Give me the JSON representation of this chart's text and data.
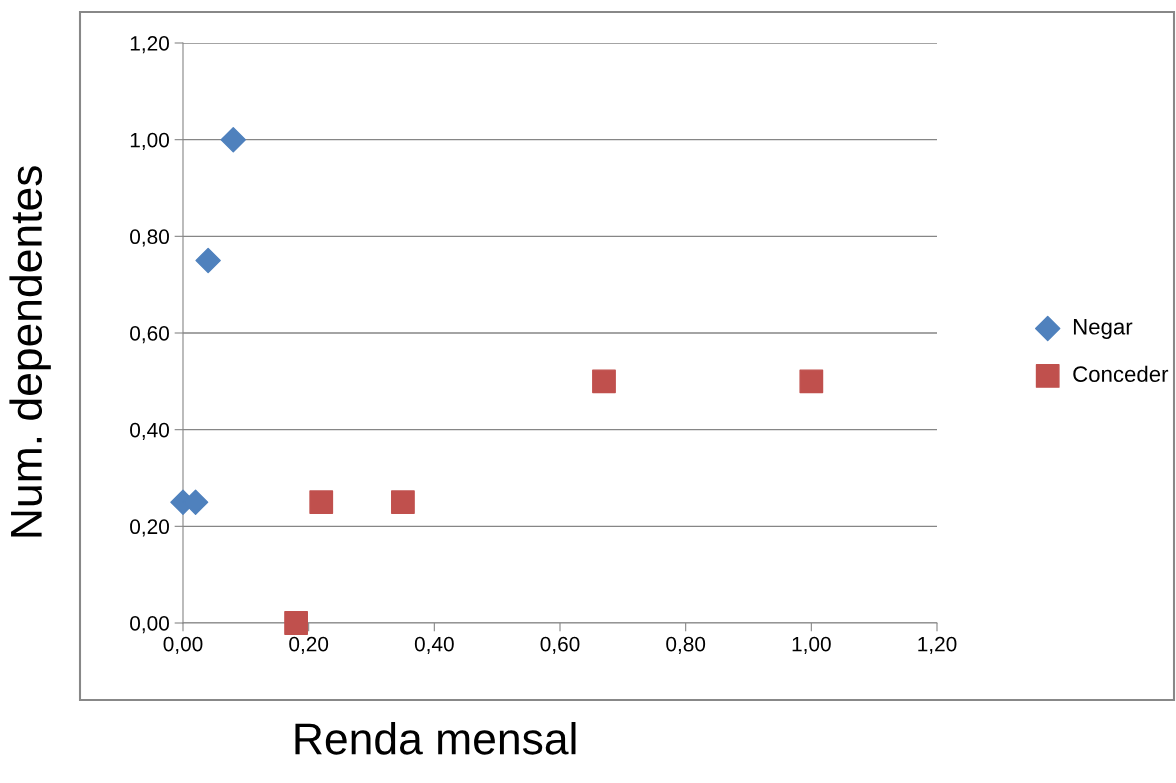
{
  "chart_data": {
    "type": "scatter",
    "xlabel": "Renda mensal",
    "ylabel": "Num. dependentes",
    "series": [
      {
        "name": "Negar",
        "color": "#4f81bd",
        "marker": "diamond",
        "x": [
          0.0,
          0.02,
          0.04,
          0.08
        ],
        "values": [
          0.25,
          0.25,
          0.75,
          1.0
        ]
      },
      {
        "name": "Conceder",
        "color": "#c0504d",
        "marker": "square",
        "x": [
          0.18,
          0.22,
          0.35,
          0.67,
          1.0
        ],
        "values": [
          0.0,
          0.25,
          0.25,
          0.5,
          0.5
        ]
      }
    ],
    "xlim": [
      0,
      1.2
    ],
    "ylim": [
      0,
      1.2
    ],
    "xticks": [
      {
        "value": 0,
        "label": "0,00"
      },
      {
        "value": 0.2,
        "label": "0,20"
      },
      {
        "value": 0.4,
        "label": "0,40"
      },
      {
        "value": 0.6,
        "label": "0,60"
      },
      {
        "value": 0.8,
        "label": "0,80"
      },
      {
        "value": 1.0,
        "label": "1,00"
      },
      {
        "value": 1.2,
        "label": "1,20"
      }
    ],
    "yticks": [
      {
        "value": 0,
        "label": "0,00"
      },
      {
        "value": 0.2,
        "label": "0,20"
      },
      {
        "value": 0.4,
        "label": "0,40"
      },
      {
        "value": 0.6,
        "label": "0,60"
      },
      {
        "value": 0.8,
        "label": "0,80"
      },
      {
        "value": 1.0,
        "label": "1,00"
      },
      {
        "value": 1.2,
        "label": "1,20"
      }
    ],
    "grid": "y",
    "legend": "right"
  }
}
